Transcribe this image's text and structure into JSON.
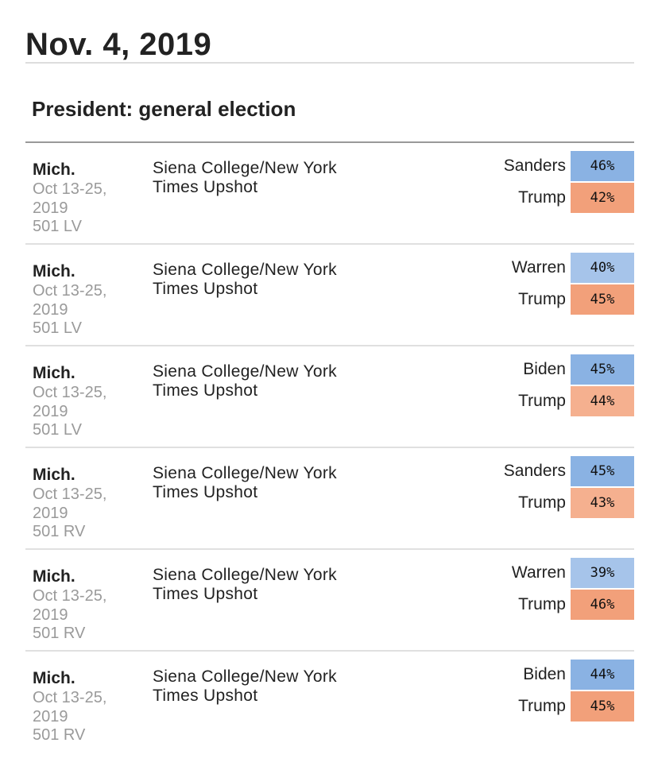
{
  "date": "Nov. 4, 2019",
  "section_title": "President: general election",
  "polls": [
    {
      "state": "Mich.",
      "dates": "Oct 13-25, 2019",
      "sample": "501 LV",
      "pollster": "Siena College/New York Times Upshot",
      "results": [
        {
          "candidate": "Sanders",
          "pct": "46%"
        },
        {
          "candidate": "Trump",
          "pct": "42%"
        }
      ]
    },
    {
      "state": "Mich.",
      "dates": "Oct 13-25, 2019",
      "sample": "501 LV",
      "pollster": "Siena College/New York Times Upshot",
      "results": [
        {
          "candidate": "Warren",
          "pct": "40%"
        },
        {
          "candidate": "Trump",
          "pct": "45%"
        }
      ]
    },
    {
      "state": "Mich.",
      "dates": "Oct 13-25, 2019",
      "sample": "501 LV",
      "pollster": "Siena College/New York Times Upshot",
      "results": [
        {
          "candidate": "Biden",
          "pct": "45%"
        },
        {
          "candidate": "Trump",
          "pct": "44%"
        }
      ]
    },
    {
      "state": "Mich.",
      "dates": "Oct 13-25, 2019",
      "sample": "501 RV",
      "pollster": "Siena College/New York Times Upshot",
      "results": [
        {
          "candidate": "Sanders",
          "pct": "45%"
        },
        {
          "candidate": "Trump",
          "pct": "43%"
        }
      ]
    },
    {
      "state": "Mich.",
      "dates": "Oct 13-25, 2019",
      "sample": "501 RV",
      "pollster": "Siena College/New York Times Upshot",
      "results": [
        {
          "candidate": "Warren",
          "pct": "39%"
        },
        {
          "candidate": "Trump",
          "pct": "46%"
        }
      ]
    },
    {
      "state": "Mich.",
      "dates": "Oct 13-25, 2019",
      "sample": "501 RV",
      "pollster": "Siena College/New York Times Upshot",
      "results": [
        {
          "candidate": "Biden",
          "pct": "44%"
        },
        {
          "candidate": "Trump",
          "pct": "45%"
        }
      ]
    }
  ],
  "colors": {
    "dem": "#8ab2e3",
    "dem_light": "#a6c4ea",
    "rep": "#f2a07a",
    "rep_light": "#f5b08f"
  }
}
